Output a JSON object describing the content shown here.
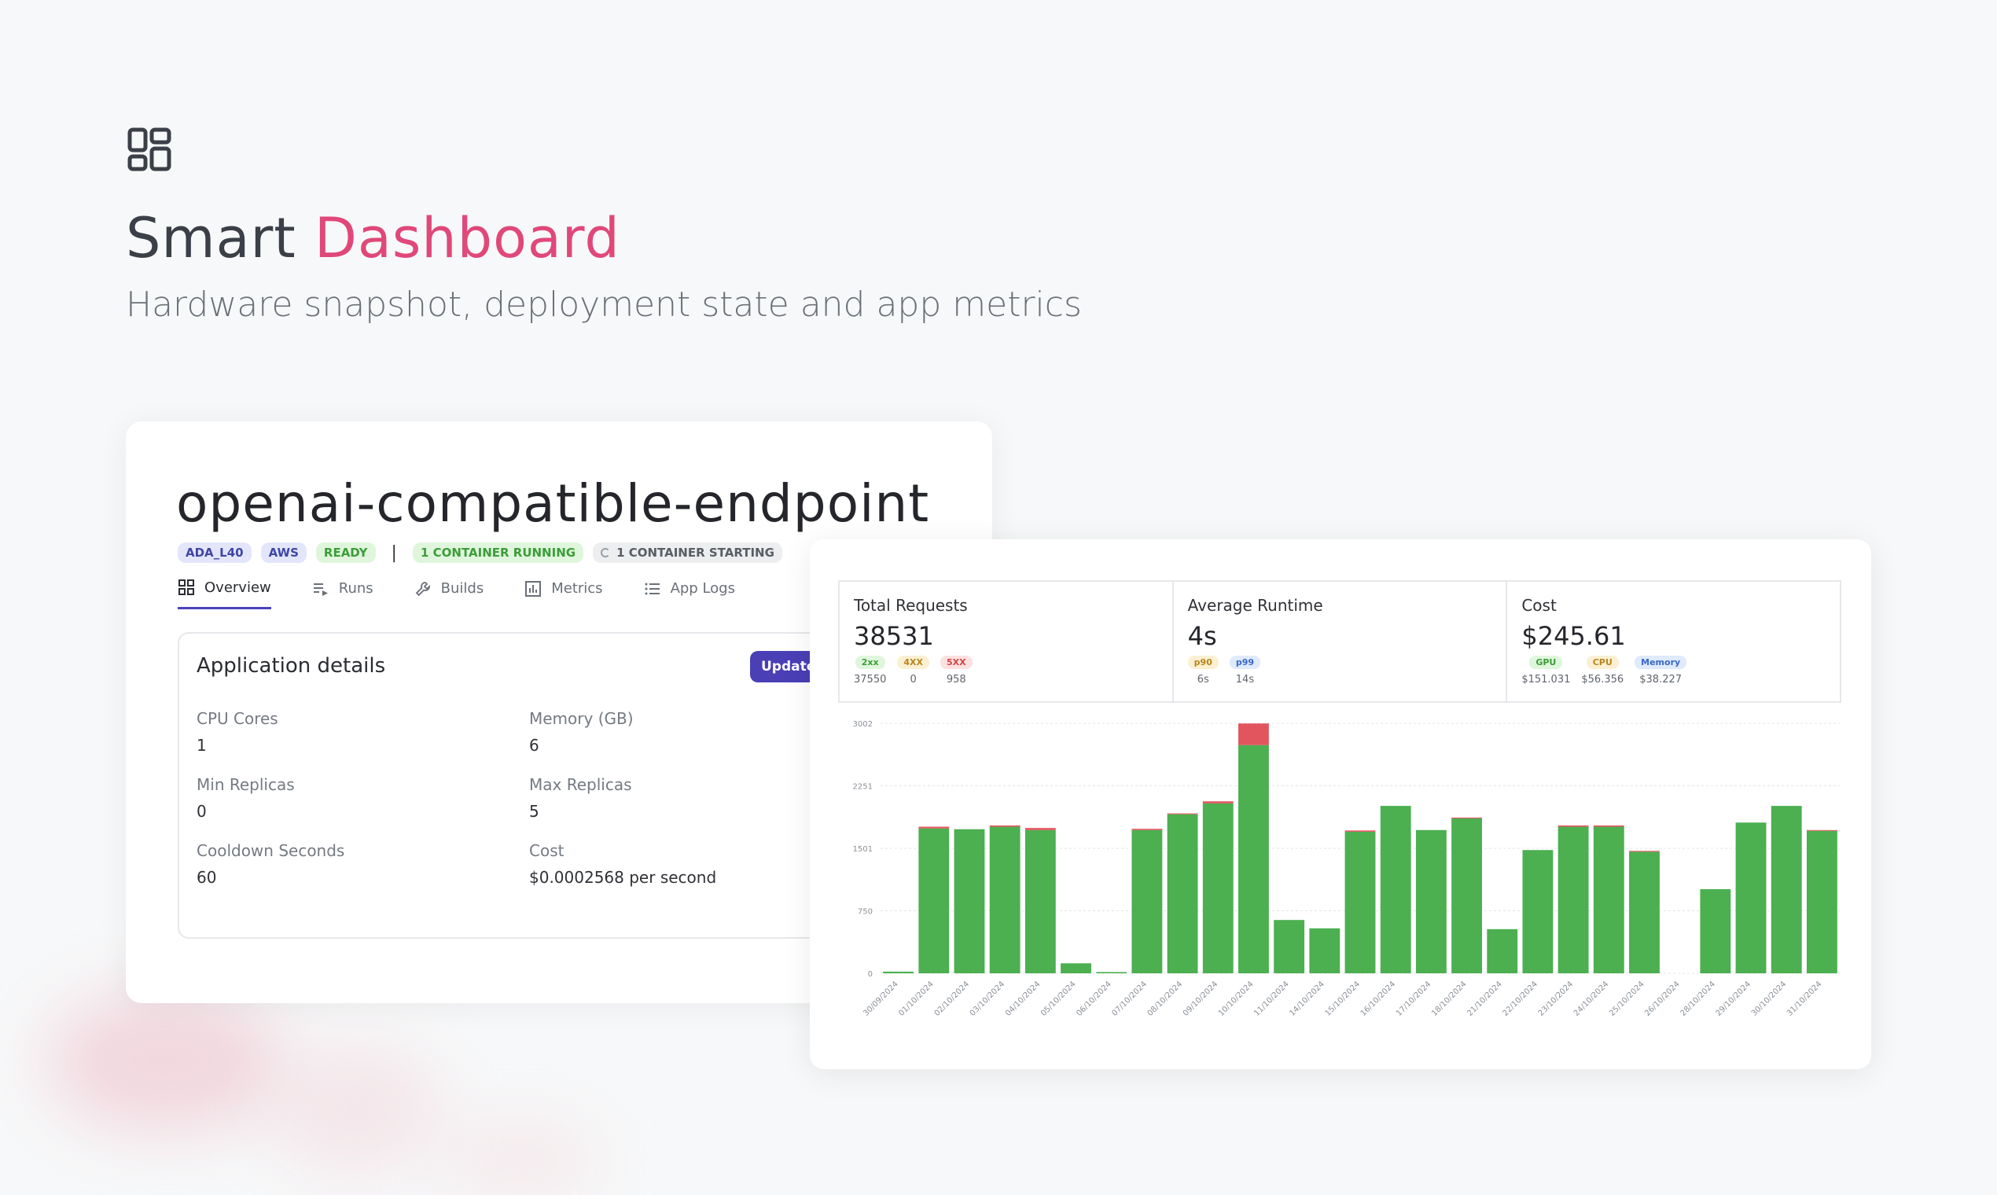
{
  "hero": {
    "icon": "dashboard-grid-icon",
    "title_plain": "Smart",
    "title_accent": "Dashboard",
    "subtitle": "Hardware snapshot, deployment state and app metrics",
    "accent_color": "#e0487a"
  },
  "app": {
    "name": "openai-compatible-endpoint",
    "badges": {
      "hardware": "ADA_L40",
      "provider": "AWS",
      "status": "READY",
      "separator": "|",
      "running": "1 CONTAINER RUNNING",
      "starting": "1 CONTAINER STARTING"
    },
    "tabs": [
      {
        "label": "Overview",
        "icon": "grid-icon"
      },
      {
        "label": "Runs",
        "icon": "list-play-icon"
      },
      {
        "label": "Builds",
        "icon": "wrench-icon"
      },
      {
        "label": "Metrics",
        "icon": "bar-chart-icon"
      },
      {
        "label": "App Logs",
        "icon": "list-icon"
      }
    ],
    "details": {
      "title": "Application details",
      "update_label": "Update A",
      "fields": [
        {
          "key": "CPU Cores",
          "value": "1"
        },
        {
          "key": "Memory (GB)",
          "value": "6"
        },
        {
          "key": "Min Replicas",
          "value": "0"
        },
        {
          "key": "Max Replicas",
          "value": "5"
        },
        {
          "key": "Cooldown Seconds",
          "value": "60"
        },
        {
          "key": "Cost",
          "value": "$0.0002568 per second"
        }
      ]
    }
  },
  "metrics": {
    "total_requests": {
      "label": "Total Requests",
      "value": "38531",
      "chips": [
        {
          "tag": "2xx",
          "value": "37550",
          "color": "green"
        },
        {
          "tag": "4XX",
          "value": "0",
          "color": "amber"
        },
        {
          "tag": "5XX",
          "value": "958",
          "color": "red"
        }
      ]
    },
    "average_runtime": {
      "label": "Average Runtime",
      "value": "4s",
      "chips": [
        {
          "tag": "p90",
          "value": "6s",
          "color": "amber"
        },
        {
          "tag": "p99",
          "value": "14s",
          "color": "blue"
        }
      ]
    },
    "cost": {
      "label": "Cost",
      "value": "$245.61",
      "chips": [
        {
          "tag": "GPU",
          "value": "$151.031",
          "color": "green"
        },
        {
          "tag": "CPU",
          "value": "$56.356",
          "color": "amber"
        },
        {
          "tag": "Memory",
          "value": "$38.227",
          "color": "blue"
        }
      ]
    }
  },
  "chart_data": {
    "type": "bar",
    "stacked": true,
    "categories": [
      "30/09/2024",
      "01/10/2024",
      "02/10/2024",
      "03/10/2024",
      "04/10/2024",
      "05/10/2024",
      "06/10/2024",
      "07/10/2024",
      "08/10/2024",
      "09/10/2024",
      "10/10/2024",
      "11/10/2024",
      "14/10/2024",
      "15/10/2024",
      "16/10/2024",
      "17/10/2024",
      "18/10/2024",
      "21/10/2024",
      "22/10/2024",
      "23/10/2024",
      "24/10/2024",
      "25/10/2024",
      "26/10/2024",
      "28/10/2024",
      "29/10/2024",
      "30/10/2024",
      "31/10/2024"
    ],
    "series": [
      {
        "color": "#4caf50",
        "values": [
          20,
          1740,
          1730,
          1760,
          1720,
          120,
          15,
          1720,
          1910,
          2040,
          2740,
          640,
          540,
          1700,
          2010,
          1720,
          1860,
          530,
          1480,
          1760,
          1760,
          1460,
          0,
          1010,
          1810,
          2010,
          1710
        ]
      },
      {
        "color": "#e2555e",
        "values": [
          0,
          20,
          0,
          15,
          25,
          0,
          0,
          15,
          10,
          25,
          260,
          0,
          0,
          15,
          0,
          0,
          10,
          0,
          0,
          15,
          15,
          10,
          0,
          0,
          0,
          0,
          10
        ]
      }
    ],
    "yticks": [
      0,
      750,
      1501,
      2251,
      3002
    ],
    "ylim": [
      0,
      3002
    ],
    "grid": true
  }
}
